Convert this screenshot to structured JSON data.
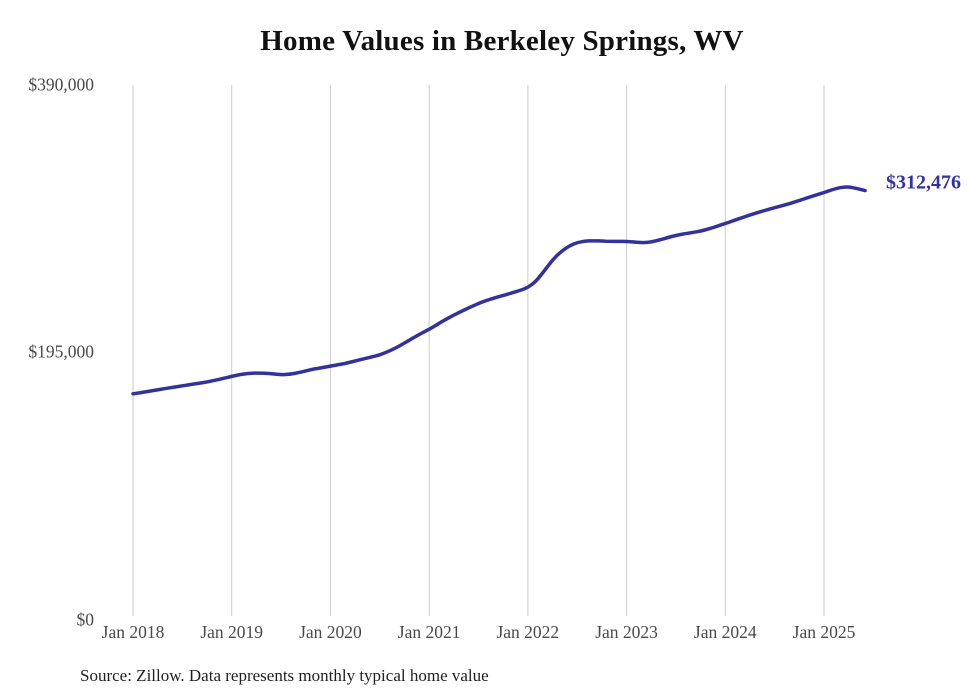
{
  "title": "Home Values in Berkeley Springs, WV",
  "source_note": "Source: Zillow. Data represents monthly typical home value",
  "end_label": "$312,476",
  "colors": {
    "line": "#32329E",
    "end_label_text": "#32329E",
    "gridline": "#cbcbcb",
    "tick_text": "#4a4a4a",
    "title_text": "#111111",
    "source_text": "#1f1f1f",
    "background": "#ffffff"
  },
  "chart_data": {
    "type": "line",
    "title": "Home Values in Berkeley Springs, WV",
    "series_name": "Monthly typical home value (USD)",
    "frequency": "monthly",
    "start_month": "2018-01",
    "end_month": "2025-06",
    "final_value": 312476,
    "ylim": [
      0,
      390000
    ],
    "y_tick_labels": [
      "$0",
      "$195,000",
      "$390,000"
    ],
    "x_tick_labels": [
      "Jan 2018",
      "Jan 2019",
      "Jan 2020",
      "Jan 2021",
      "Jan 2022",
      "Jan 2023",
      "Jan 2024",
      "Jan 2025"
    ],
    "grid": "vertical",
    "legend": "none",
    "values": [
      163200,
      164100,
      165100,
      166100,
      167100,
      168100,
      169000,
      170000,
      170900,
      171900,
      173200,
      174600,
      176000,
      177300,
      178200,
      178500,
      178300,
      177800,
      177200,
      177500,
      178600,
      180000,
      181400,
      182400,
      183500,
      184600,
      185800,
      187300,
      188800,
      190300,
      191800,
      194200,
      197000,
      200500,
      204000,
      207500,
      210500,
      214200,
      217800,
      221000,
      224000,
      226900,
      229500,
      231800,
      233700,
      235400,
      237200,
      239100,
      241200,
      245900,
      253500,
      261500,
      267500,
      271800,
      274300,
      275400,
      275600,
      275400,
      275200,
      275100,
      275100,
      274600,
      274100,
      274700,
      276200,
      277900,
      279500,
      280700,
      281700,
      282700,
      284300,
      286300,
      288300,
      290400,
      292500,
      294500,
      296400,
      298200,
      299900,
      301500,
      303200,
      305200,
      307200,
      309100,
      311000,
      313100,
      314900,
      315200,
      314000,
      312476
    ]
  }
}
